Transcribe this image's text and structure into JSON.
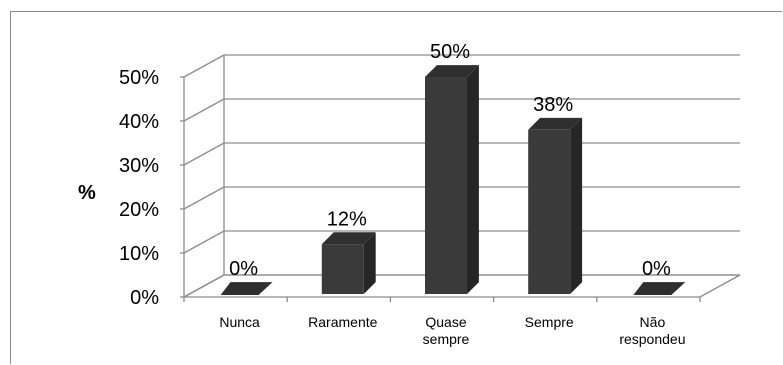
{
  "chart_data": {
    "type": "bar",
    "categories": [
      "Nunca",
      "Raramente",
      "Quase sempre",
      "Sempre",
      "Não respondeu"
    ],
    "category_lines": [
      [
        "Nunca"
      ],
      [
        "Raramente"
      ],
      [
        "Quase",
        "sempre"
      ],
      [
        "Sempre"
      ],
      [
        "Não",
        "respondeu"
      ]
    ],
    "values": [
      0,
      12,
      50,
      38,
      0
    ],
    "data_labels": [
      "0%",
      "12%",
      "50%",
      "38%",
      "0%"
    ],
    "ylabel": "%",
    "ylim": [
      0,
      50
    ],
    "yticks": [
      0,
      10,
      20,
      30,
      40,
      50
    ],
    "ytick_labels": [
      "0%",
      "10%",
      "20%",
      "30%",
      "40%",
      "50%"
    ],
    "grid": true,
    "legend": false,
    "colors": {
      "bar_front": "#3a3a3a",
      "bar_side": "#262626",
      "bar_top": "#2f2f2f",
      "grid": "#8c8c8c"
    }
  }
}
